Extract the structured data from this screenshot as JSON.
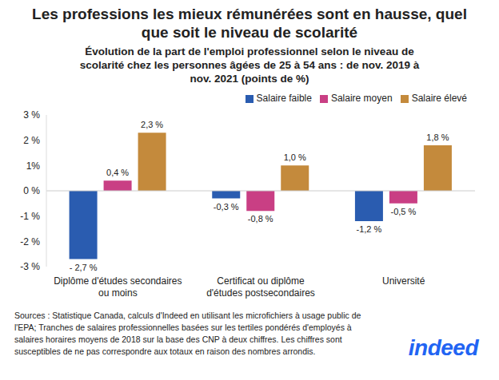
{
  "chart_data": {
    "type": "bar",
    "title": "Les professions les mieux rémunérées sont en hausse, quel que soit le niveau de scolarité",
    "subtitle": "Évolution de la part de l'emploi professionnel selon le niveau de scolarité chez les personnes âgées de 25 à 54 ans : de nov. 2019 à nov. 2021 (points de %)",
    "categories": [
      "Diplôme d'études secondaires ou moins",
      "Certificat ou diplôme d'études postsecondaires",
      "Université"
    ],
    "series": [
      {
        "name": "Salaire faible",
        "color": "#2a5cb0",
        "values": [
          -2.7,
          -0.3,
          -1.2
        ],
        "value_labels": [
          "- 2,7 %",
          "-0,3 %",
          "-1,2 %"
        ]
      },
      {
        "name": "Salaire moyen",
        "color": "#c93f84",
        "values": [
          0.4,
          -0.8,
          -0.5
        ],
        "value_labels": [
          "0,4 %",
          "-0,8 %",
          "-0,5 %"
        ]
      },
      {
        "name": "Salaire élevé",
        "color": "#c48a3c",
        "values": [
          2.3,
          1.0,
          1.8
        ],
        "value_labels": [
          "2,3 %",
          "1,0 %",
          "1,8 %"
        ]
      }
    ],
    "ylim": [
      -3,
      3
    ],
    "yticks": [
      {
        "value": -3,
        "label": "-3 %"
      },
      {
        "value": -2,
        "label": "-2 %"
      },
      {
        "value": -1,
        "label": "-1 %"
      },
      {
        "value": 0,
        "label": "0 %"
      },
      {
        "value": 1,
        "label": "1%"
      },
      {
        "value": 2,
        "label": "2 %"
      },
      {
        "value": 3,
        "label": "3 %"
      }
    ],
    "grid": false,
    "legend": "top",
    "data_labels": true,
    "source": "Sources : Statistique Canada, calculs d'Indeed en utilisant les microfichiers à usage public de l'EPA; Tranches de salaires professionnelles basées sur les tertiles pondérés d'employés à salaires horaires moyens de 2018 sur la base des CNP à deux chiffres. Les chiffres sont susceptibles de ne pas correspondre aux totaux en raison des nombres arrondis.",
    "logo": "indeed"
  }
}
